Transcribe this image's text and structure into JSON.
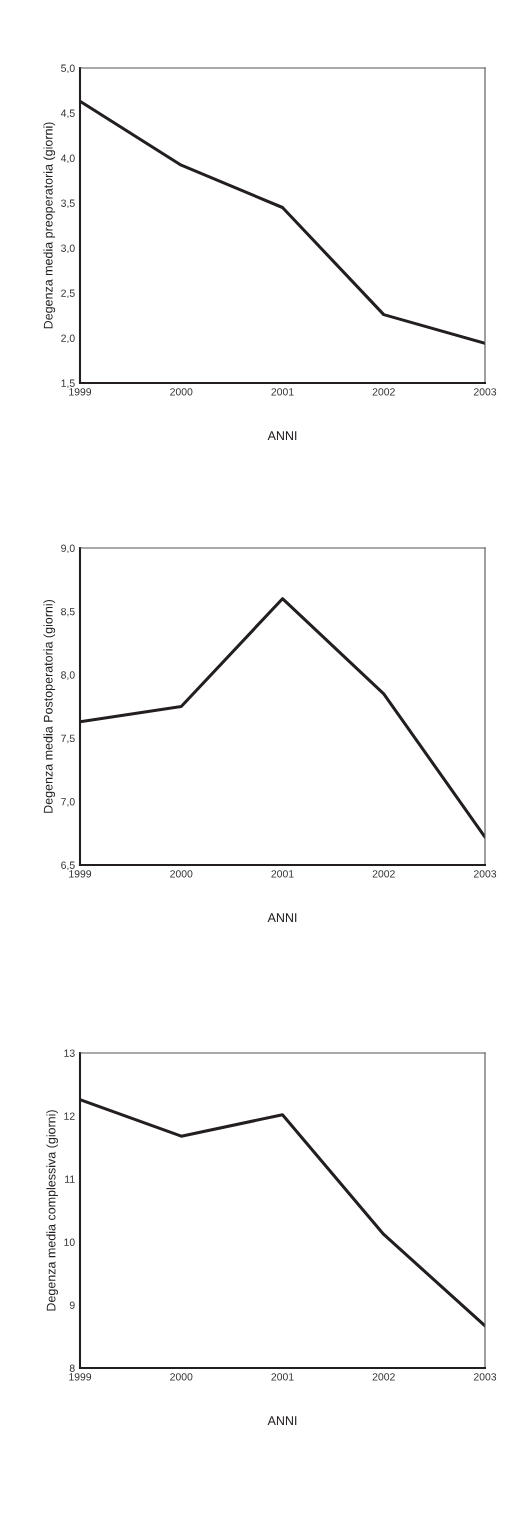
{
  "chart_data": [
    {
      "type": "line",
      "xlabel": "ANNI",
      "ylabel": "Degenza media preoperatoria (giorni)",
      "x": [
        1999,
        2000,
        2001,
        2002,
        2003
      ],
      "series": [
        {
          "color": "#231f20",
          "values": [
            4.63,
            3.92,
            3.45,
            2.26,
            1.94
          ]
        }
      ],
      "xlim": [
        1999,
        2003
      ],
      "xticks": [
        1999,
        2000,
        2001,
        2002,
        2003
      ],
      "ylim": [
        1.5,
        5.0
      ],
      "yticks": [
        {
          "value": 1.5,
          "label": "1,5"
        },
        {
          "value": 2.0,
          "label": "2,0"
        },
        {
          "value": 2.5,
          "label": "2,5"
        },
        {
          "value": 3.0,
          "label": "3,0"
        },
        {
          "value": 3.5,
          "label": "3,5"
        },
        {
          "value": 4.0,
          "label": "4,0"
        },
        {
          "value": 4.5,
          "label": "4,5"
        },
        {
          "value": 5.0,
          "label": "5,0"
        }
      ],
      "grid": false,
      "marker": "none",
      "line_style": "solid"
    },
    {
      "type": "line",
      "xlabel": "ANNI",
      "ylabel": "Degenza media Postoperatoria (giorni)",
      "x": [
        1999,
        2000,
        2001,
        2002,
        2003
      ],
      "series": [
        {
          "color": "#231f20",
          "values": [
            7.63,
            7.75,
            8.6,
            7.85,
            6.72
          ]
        }
      ],
      "xlim": [
        1999,
        2003
      ],
      "xticks": [
        1999,
        2000,
        2001,
        2002,
        2003
      ],
      "ylim": [
        6.5,
        9.0
      ],
      "yticks": [
        {
          "value": 6.5,
          "label": "6,5"
        },
        {
          "value": 7.0,
          "label": "7,0"
        },
        {
          "value": 7.5,
          "label": "7,5"
        },
        {
          "value": 8.0,
          "label": "8,0"
        },
        {
          "value": 8.5,
          "label": "8,5"
        },
        {
          "value": 9.0,
          "label": "9,0"
        }
      ],
      "grid": false,
      "marker": "none",
      "line_style": "solid"
    },
    {
      "type": "line",
      "xlabel": "ANNI",
      "ylabel": "Degenza media complessiva (giorni)",
      "x": [
        1999,
        2000,
        2001,
        2002,
        2003
      ],
      "series": [
        {
          "color": "#231f20",
          "values": [
            12.26,
            11.68,
            12.02,
            10.12,
            8.67
          ]
        }
      ],
      "xlim": [
        1999,
        2003
      ],
      "xticks": [
        1999,
        2000,
        2001,
        2002,
        2003
      ],
      "ylim": [
        8,
        13
      ],
      "yticks": [
        8,
        9,
        10,
        11,
        12,
        13
      ],
      "grid": false,
      "marker": "none",
      "line_style": "solid"
    }
  ]
}
